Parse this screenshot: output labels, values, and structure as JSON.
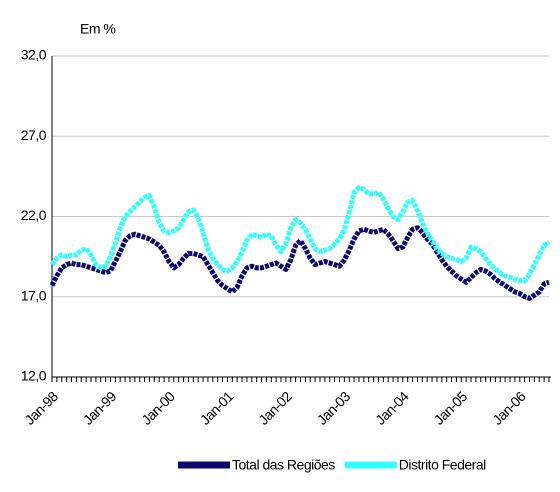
{
  "chart_data": {
    "type": "line",
    "title": "Em %",
    "categories": [
      "Jan-98",
      null,
      null,
      null,
      null,
      null,
      null,
      null,
      null,
      null,
      null,
      null,
      "Jan-99",
      null,
      null,
      null,
      null,
      null,
      null,
      null,
      null,
      null,
      null,
      null,
      "Jan-00",
      null,
      null,
      null,
      null,
      null,
      null,
      null,
      null,
      null,
      null,
      null,
      "Jan-01",
      null,
      null,
      null,
      null,
      null,
      null,
      null,
      null,
      null,
      null,
      null,
      "Jan-02",
      null,
      null,
      null,
      null,
      null,
      null,
      null,
      null,
      null,
      null,
      null,
      "Jan-03",
      null,
      null,
      null,
      null,
      null,
      null,
      null,
      null,
      null,
      null,
      null,
      "Jan-04",
      null,
      null,
      null,
      null,
      null,
      null,
      null,
      null,
      null,
      null,
      null,
      "Jan-05",
      null,
      null,
      null,
      null,
      null,
      null,
      null,
      null,
      null,
      null,
      null,
      "Jan-06",
      null,
      null,
      null,
      null,
      null,
      null
    ],
    "series": [
      {
        "name": "Total das Regiões",
        "color": "#0a0a6e",
        "values": [
          17.7,
          18.3,
          18.8,
          19.0,
          19.1,
          19.0,
          19.0,
          18.9,
          18.8,
          18.7,
          18.6,
          18.5,
          18.6,
          19.2,
          19.8,
          20.5,
          20.8,
          20.9,
          20.8,
          20.7,
          20.6,
          20.4,
          20.2,
          19.8,
          19.2,
          18.8,
          19.0,
          19.4,
          19.7,
          19.7,
          19.6,
          19.5,
          19.0,
          18.5,
          18.0,
          17.7,
          17.5,
          17.3,
          17.6,
          18.3,
          18.8,
          18.9,
          18.8,
          18.8,
          18.9,
          19.0,
          19.1,
          18.9,
          18.7,
          19.3,
          20.2,
          20.5,
          20.0,
          19.4,
          19.0,
          19.1,
          19.2,
          19.1,
          19.0,
          18.9,
          19.3,
          19.9,
          20.6,
          21.1,
          21.2,
          21.1,
          21.0,
          21.1,
          21.2,
          20.9,
          20.5,
          20.0,
          20.1,
          20.7,
          21.2,
          21.3,
          21.0,
          20.6,
          20.3,
          19.8,
          19.3,
          18.9,
          18.6,
          18.3,
          18.1,
          17.9,
          18.2,
          18.5,
          18.7,
          18.6,
          18.4,
          18.1,
          17.9,
          17.7,
          17.5,
          17.3,
          17.2,
          17.0,
          16.9,
          17.1,
          17.3,
          17.8,
          17.9
        ]
      },
      {
        "name": "Distrito Federal",
        "color": "#33ffff",
        "values": [
          19.0,
          19.4,
          19.6,
          19.5,
          19.6,
          19.6,
          19.9,
          20.0,
          19.6,
          19.0,
          18.8,
          18.9,
          19.5,
          20.3,
          21.3,
          22.0,
          22.3,
          22.6,
          22.9,
          23.2,
          23.3,
          22.6,
          21.6,
          21.1,
          21.0,
          21.1,
          21.3,
          21.8,
          22.3,
          22.4,
          21.9,
          21.0,
          20.0,
          19.4,
          19.0,
          18.7,
          18.6,
          18.8,
          19.2,
          19.8,
          20.5,
          20.9,
          20.8,
          20.7,
          20.9,
          20.8,
          20.2,
          19.8,
          20.3,
          21.3,
          21.8,
          21.6,
          21.2,
          20.6,
          20.0,
          19.8,
          19.9,
          20.0,
          20.3,
          20.6,
          21.2,
          22.2,
          23.5,
          23.8,
          23.7,
          23.4,
          23.4,
          23.5,
          23.1,
          22.5,
          22.0,
          21.8,
          22.3,
          22.9,
          23.0,
          22.4,
          21.6,
          21.0,
          20.5,
          20.0,
          19.7,
          19.5,
          19.4,
          19.3,
          19.2,
          19.4,
          20.1,
          20.0,
          19.8,
          19.4,
          19.0,
          18.7,
          18.5,
          18.3,
          18.2,
          18.1,
          18.0,
          18.0,
          18.4,
          19.0,
          19.6,
          20.2,
          20.4
        ]
      }
    ],
    "ylim": [
      12,
      32
    ],
    "yticks": [
      {
        "value": 12,
        "label": "12,0"
      },
      {
        "value": 17,
        "label": "17,0"
      },
      {
        "value": 22,
        "label": "22,0"
      },
      {
        "value": 27,
        "label": "27,0"
      },
      {
        "value": 32,
        "label": "32,0"
      }
    ],
    "grid": true,
    "legend": "bottom"
  }
}
